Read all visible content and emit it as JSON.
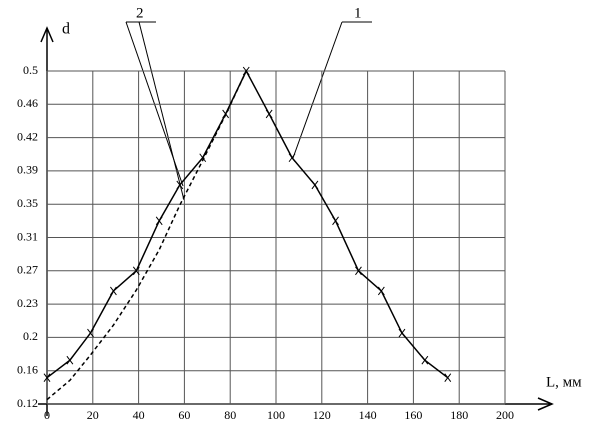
{
  "chart_data": {
    "type": "line",
    "ylabel": "d",
    "xlabel": "L, мм",
    "xlim": [
      0,
      200
    ],
    "xticks": [
      0,
      20,
      40,
      60,
      80,
      100,
      120,
      140,
      160,
      180,
      200
    ],
    "ylim": [
      0.12,
      0.5
    ],
    "yticks": [
      0.12,
      {
        "value": 0.158,
        "label": "0.16"
      },
      {
        "value": 0.196,
        "label": "0.2"
      },
      {
        "value": 0.234,
        "label": "0.23"
      },
      {
        "value": 0.272,
        "label": "0.27"
      },
      0.31,
      {
        "value": 0.348,
        "label": "0.35"
      },
      {
        "value": 0.386,
        "label": "0.39"
      },
      {
        "value": 0.424,
        "label": "0.42"
      },
      {
        "value": 0.462,
        "label": "0.46"
      },
      0.5
    ],
    "grid": true,
    "series": [
      {
        "name": "1",
        "color": "#000000",
        "marker": "x",
        "dashed": false,
        "x": [
          0,
          10,
          19,
          29,
          39,
          49,
          58,
          68,
          78,
          87,
          97,
          107,
          117,
          126,
          136,
          146,
          155,
          165,
          175
        ],
        "values": [
          0.15,
          0.17,
          0.201,
          0.249,
          0.272,
          0.329,
          0.37,
          0.401,
          0.451,
          0.5,
          0.451,
          0.401,
          0.37,
          0.329,
          0.272,
          0.249,
          0.201,
          0.17,
          0.15
        ]
      },
      {
        "name": "2",
        "color": "#000000",
        "dashed": true,
        "x": [
          0,
          10,
          19,
          29,
          39,
          49,
          58,
          68,
          78,
          87
        ],
        "values": [
          0.125,
          0.147,
          0.176,
          0.21,
          0.25,
          0.296,
          0.347,
          0.398,
          0.45,
          0.5
        ]
      }
    ]
  }
}
